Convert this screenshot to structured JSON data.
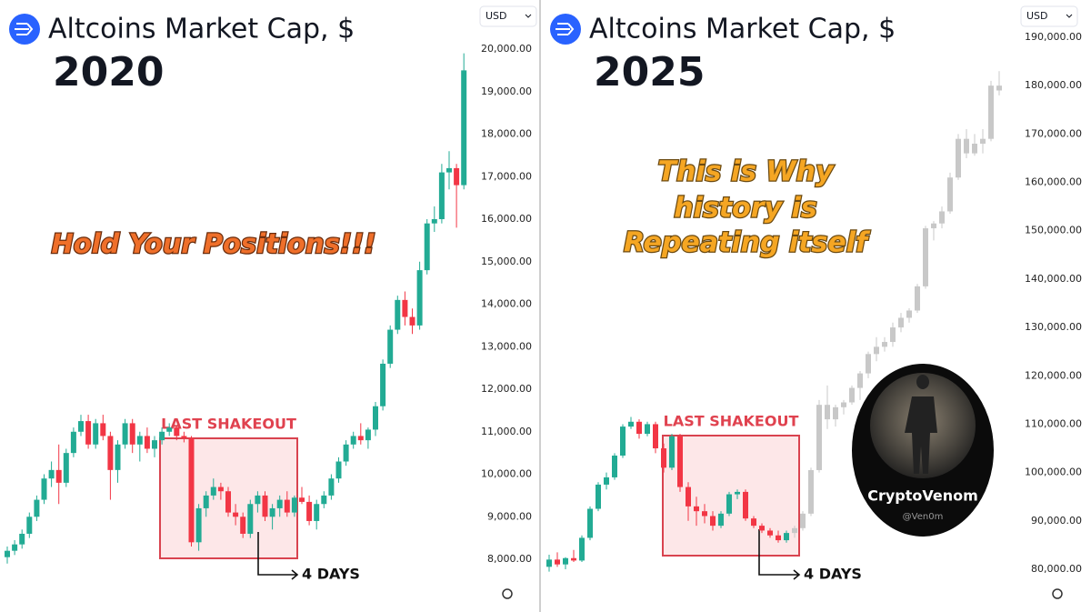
{
  "chart_data": [
    {
      "type": "candlestick",
      "title": "Altcoins Market Cap, $",
      "subtitle": "2020",
      "currency": "USD",
      "annotation": [
        "Hold Your Positions!!!"
      ],
      "box_label": "LAST SHAKEOUT",
      "arrow_label": "4 DAYS",
      "up_color": "#22ab94",
      "down_color": "#f23645",
      "ylim": [
        6760,
        21155
      ],
      "yticks": [
        {
          "value": 8000,
          "label": "8,000.00"
        },
        {
          "value": 9000,
          "label": "9,000.00"
        },
        {
          "value": 10000,
          "label": "10,000.00"
        },
        {
          "value": 11000,
          "label": "11,000.00"
        },
        {
          "value": 12000,
          "label": "12,000.00"
        },
        {
          "value": 13000,
          "label": "13,000.00"
        },
        {
          "value": 14000,
          "label": "14,000.00"
        },
        {
          "value": 15000,
          "label": "15,000.00"
        },
        {
          "value": 16000,
          "label": "16,000.00"
        },
        {
          "value": 17000,
          "label": "17,000.00"
        },
        {
          "value": 18000,
          "label": "18,000.00"
        },
        {
          "value": 19000,
          "label": "19,000.00"
        },
        {
          "value": 20000,
          "label": "20,000.00"
        }
      ],
      "series": [
        {
          "values": [
            [
              8050,
              8300,
              7900,
              8200
            ],
            [
              8200,
              8450,
              8100,
              8350
            ],
            [
              8350,
              8700,
              8250,
              8600
            ],
            [
              8600,
              9100,
              8500,
              9000
            ],
            [
              9000,
              9500,
              8900,
              9400
            ],
            [
              9400,
              10000,
              9300,
              9900
            ],
            [
              9900,
              10300,
              9700,
              10100
            ],
            [
              10100,
              10700,
              9300,
              9800
            ],
            [
              9800,
              10600,
              9700,
              10500
            ],
            [
              10500,
              11100,
              10400,
              11000
            ],
            [
              11000,
              11400,
              10900,
              11250
            ],
            [
              11250,
              11400,
              10600,
              10700
            ],
            [
              10700,
              11300,
              10600,
              11200
            ],
            [
              11200,
              11400,
              10800,
              10900
            ],
            [
              10900,
              11000,
              9400,
              10100
            ],
            [
              10100,
              10800,
              9800,
              10700
            ],
            [
              10700,
              11300,
              10600,
              11200
            ],
            [
              11200,
              11300,
              10500,
              10700
            ],
            [
              10700,
              11000,
              10300,
              10900
            ],
            [
              10900,
              11100,
              10500,
              10600
            ],
            [
              10600,
              10900,
              10400,
              10800
            ],
            [
              10800,
              11100,
              10700,
              11000
            ],
            [
              11000,
              11200,
              10900,
              11100
            ],
            [
              11100,
              11150,
              10800,
              10900
            ],
            [
              10900,
              11000,
              10750,
              10850
            ],
            [
              10850,
              10900,
              8300,
              8400
            ],
            [
              8400,
              9300,
              8200,
              9200
            ],
            [
              9200,
              9600,
              9000,
              9500
            ],
            [
              9500,
              9900,
              9400,
              9700
            ],
            [
              9700,
              9800,
              9400,
              9600
            ],
            [
              9600,
              9700,
              9000,
              9100
            ],
            [
              9100,
              9300,
              8800,
              9000
            ],
            [
              9000,
              9100,
              8500,
              8600
            ],
            [
              8600,
              9400,
              8500,
              9300
            ],
            [
              9300,
              9600,
              9100,
              9500
            ],
            [
              9500,
              9600,
              8900,
              9000
            ],
            [
              9000,
              9300,
              8700,
              9200
            ],
            [
              9200,
              9500,
              9000,
              9400
            ],
            [
              9400,
              9600,
              9000,
              9100
            ],
            [
              9100,
              9500,
              9000,
              9450
            ],
            [
              9450,
              9700,
              9300,
              9350
            ],
            [
              9350,
              9500,
              8800,
              8900
            ],
            [
              8900,
              9400,
              8700,
              9300
            ],
            [
              9300,
              9600,
              9200,
              9500
            ],
            [
              9500,
              10000,
              9400,
              9900
            ],
            [
              9900,
              10400,
              9800,
              10300
            ],
            [
              10300,
              10800,
              10200,
              10700
            ],
            [
              10700,
              11000,
              10600,
              10900
            ],
            [
              10900,
              11200,
              10700,
              10800
            ],
            [
              10800,
              11100,
              10600,
              11050
            ],
            [
              11050,
              11700,
              10900,
              11600
            ],
            [
              11600,
              12700,
              11500,
              12600
            ],
            [
              12600,
              13500,
              12500,
              13400
            ],
            [
              13400,
              14200,
              13300,
              14100
            ],
            [
              14100,
              14300,
              13500,
              13700
            ],
            [
              13700,
              13900,
              13300,
              13500
            ],
            [
              13500,
              15000,
              13400,
              14800
            ],
            [
              14800,
              16000,
              14700,
              15900
            ],
            [
              15900,
              16300,
              15700,
              16000
            ],
            [
              16000,
              17300,
              15900,
              17100
            ],
            [
              17100,
              17600,
              16700,
              17200
            ],
            [
              17200,
              17300,
              15800,
              16800
            ],
            [
              16800,
              19900,
              16700,
              19500
            ]
          ]
        }
      ]
    },
    {
      "type": "candlestick",
      "title": "Altcoins Market Cap, $",
      "subtitle": "2025",
      "currency": "USD",
      "annotation": [
        "This is Why",
        "history is",
        "Repeating itself"
      ],
      "box_label": "LAST SHAKEOUT",
      "arrow_label": "4 DAYS",
      "watermark": {
        "name": "CryptoVenom",
        "handle": "@Ven0m"
      },
      "up_color": "#22ab94",
      "down_color": "#f23645",
      "ylim": [
        71160,
        197710
      ],
      "yticks": [
        {
          "value": 80000,
          "label": "80,000.00"
        },
        {
          "value": 90000,
          "label": "90,000.00"
        },
        {
          "value": 100000,
          "label": "100,000.00"
        },
        {
          "value": 110000,
          "label": "110,000.00"
        },
        {
          "value": 120000,
          "label": "120,000.00"
        },
        {
          "value": 130000,
          "label": "130,000.00"
        },
        {
          "value": 140000,
          "label": "140,000.00"
        },
        {
          "value": 150000,
          "label": "150,000.00"
        },
        {
          "value": 160000,
          "label": "160,000.00"
        },
        {
          "value": 170000,
          "label": "170,000.00"
        },
        {
          "value": 180000,
          "label": "180,000.00"
        },
        {
          "value": 190000,
          "label": "190,000.00"
        }
      ],
      "series": [
        {
          "values": [
            [
              80500,
              83000,
              79500,
              82000
            ],
            [
              82000,
              83500,
              80500,
              81000
            ],
            [
              81000,
              82500,
              80000,
              82300
            ],
            [
              82300,
              84000,
              81500,
              81800
            ],
            [
              81800,
              87000,
              81500,
              86500
            ],
            [
              86500,
              93000,
              86000,
              92500
            ],
            [
              92500,
              98000,
              92000,
              97500
            ],
            [
              97500,
              100000,
              96500,
              99000
            ],
            [
              99000,
              104000,
              98500,
              103500
            ],
            [
              103500,
              110000,
              103000,
              109500
            ],
            [
              109500,
              111500,
              109000,
              110500
            ],
            [
              110500,
              111000,
              107000,
              108000
            ],
            [
              108000,
              110500,
              107500,
              110000
            ],
            [
              110000,
              110500,
              104000,
              105000
            ],
            [
              105000,
              106000,
              100000,
              101000
            ],
            [
              101000,
              108000,
              100500,
              107500
            ],
            [
              107500,
              108000,
              96000,
              97000
            ],
            [
              97000,
              98000,
              90000,
              93000
            ],
            [
              93000,
              95000,
              89000,
              92000
            ],
            [
              92000,
              93500,
              89500,
              91000
            ],
            [
              91000,
              92000,
              88000,
              89000
            ],
            [
              89000,
              92000,
              88500,
              91500
            ],
            [
              91500,
              96000,
              91000,
              95500
            ],
            [
              95500,
              96500,
              94500,
              96000
            ],
            [
              96000,
              96500,
              90000,
              90500
            ],
            [
              90500,
              91000,
              88500,
              89000
            ],
            [
              89000,
              89500,
              87500,
              88000
            ],
            [
              88000,
              88500,
              86500,
              87000
            ],
            [
              87000,
              88000,
              85500,
              86000
            ],
            [
              86000,
              88000,
              85500,
              87500
            ]
          ]
        },
        {
          "color": "#c8c8c8",
          "values": [
            [
              87500,
              89000,
              86500,
              88500
            ],
            [
              88500,
              92000,
              88000,
              91500
            ],
            [
              91500,
              101000,
              91000,
              100500
            ],
            [
              100500,
              115000,
              100000,
              114000
            ],
            [
              114000,
              118000,
              109000,
              111000
            ],
            [
              111000,
              114000,
              109500,
              113500
            ],
            [
              113500,
              115000,
              112000,
              114500
            ],
            [
              114500,
              118000,
              114000,
              117500
            ],
            [
              117500,
              121000,
              115000,
              120500
            ],
            [
              120500,
              125000,
              119500,
              124500
            ],
            [
              124500,
              128000,
              123000,
              126000
            ],
            [
              126000,
              128000,
              125000,
              127000
            ],
            [
              127000,
              131000,
              126000,
              130000
            ],
            [
              130000,
              133000,
              129000,
              132000
            ],
            [
              132000,
              134000,
              131000,
              133500
            ],
            [
              133500,
              139000,
              133000,
              138500
            ],
            [
              138500,
              151000,
              138000,
              150500
            ],
            [
              150500,
              152000,
              148000,
              151500
            ],
            [
              151500,
              155000,
              150500,
              154000
            ],
            [
              154000,
              162000,
              153500,
              161000
            ],
            [
              161000,
              170000,
              160500,
              169000
            ],
            [
              169000,
              171000,
              165000,
              166000
            ],
            [
              166000,
              170000,
              165500,
              168000
            ],
            [
              168000,
              171000,
              166000,
              169000
            ],
            [
              169000,
              181000,
              168500,
              180000
            ],
            [
              180000,
              183000,
              178000,
              179000
            ]
          ]
        }
      ]
    }
  ]
}
